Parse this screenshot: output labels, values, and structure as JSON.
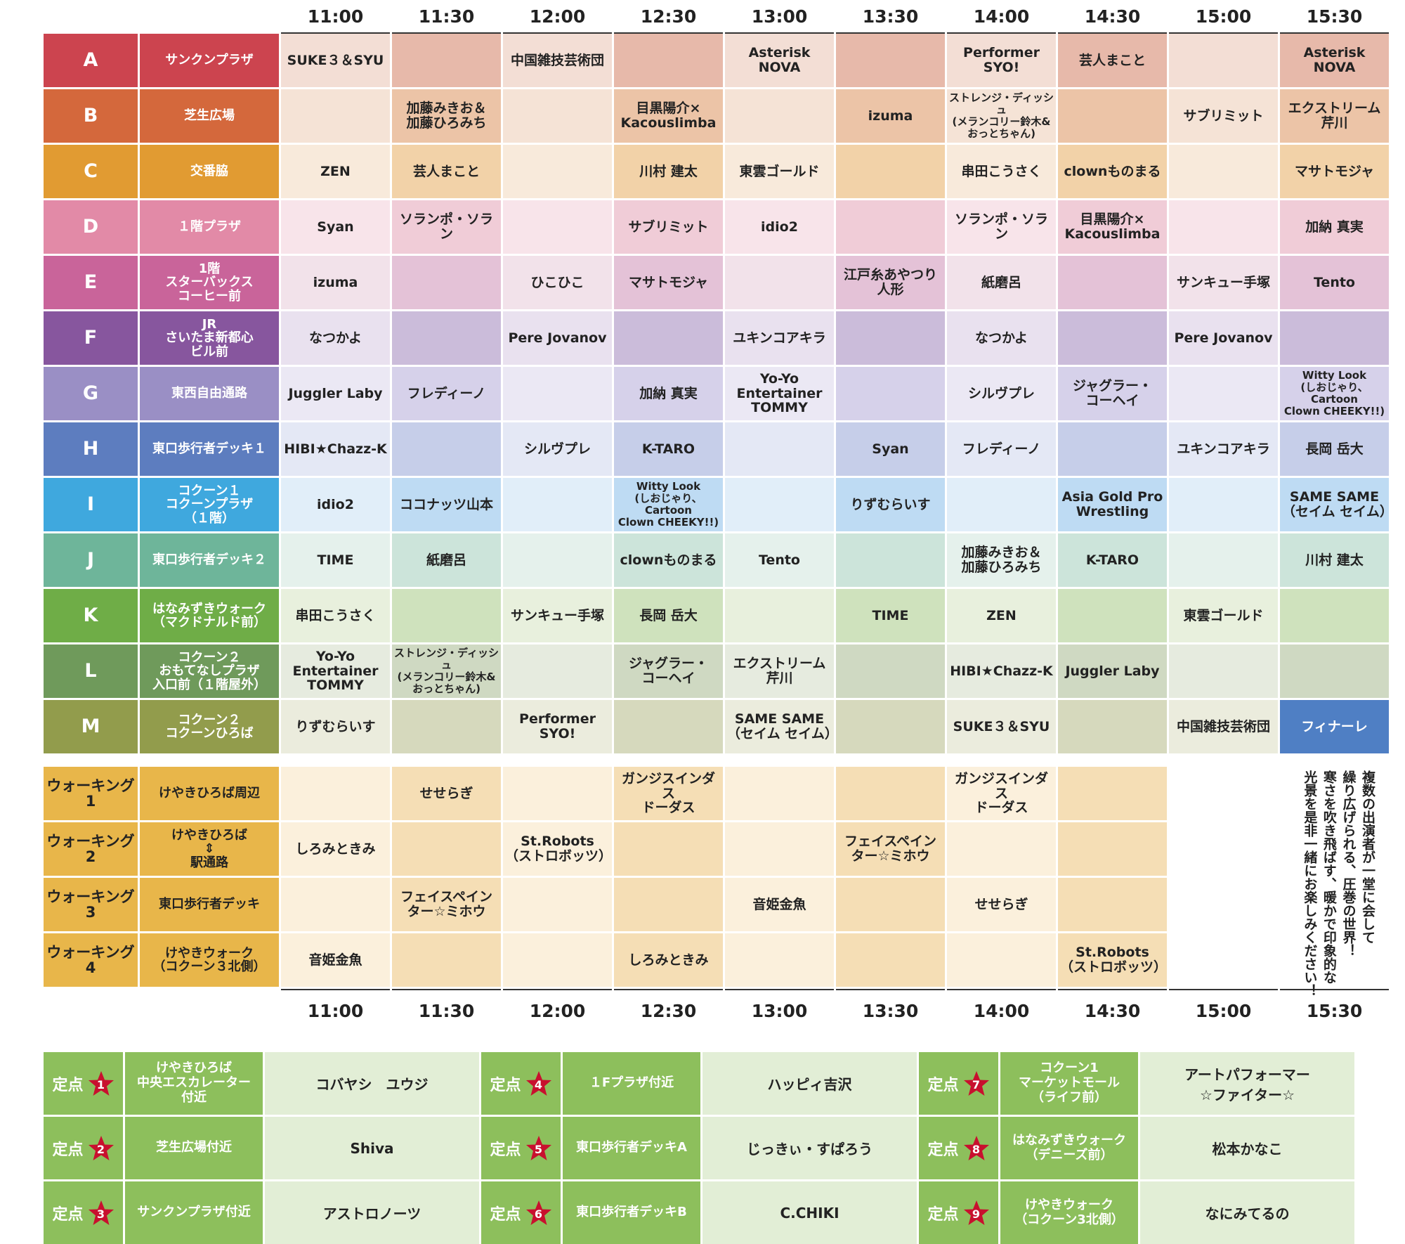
{
  "times": [
    "11:00",
    "11:30",
    "12:00",
    "12:30",
    "13:00",
    "13:30",
    "14:00",
    "14:30",
    "15:00",
    "15:30"
  ],
  "stages": [
    {
      "id": "A",
      "venue": "サンクンプラザ",
      "color": "#cc444f",
      "light": "#f3ded5",
      "dark": "#e7b9aa",
      "slots": [
        "SUKE３＆SYU",
        "",
        "中国雑技芸術団",
        "",
        "Asterisk\nNOVA",
        "",
        "Performer\nSYO!",
        "芸人まこと",
        "",
        "Asterisk\nNOVA"
      ]
    },
    {
      "id": "B",
      "venue": "芝生広場",
      "color": "#d4683c",
      "light": "#f5e3d6",
      "dark": "#ecc4a7",
      "slots": [
        "",
        "加藤みきお＆\n加藤ひろみち",
        "",
        "目黒陽介×\nKacouslimba",
        "",
        "izuma",
        "ストレンジ・ディッシュ\n(メランコリー鈴木&\nおっとちゃん)",
        "",
        "サブリミット",
        "エクストリーム\n芹川"
      ]
    },
    {
      "id": "C",
      "venue": "交番脇",
      "color": "#e19b32",
      "light": "#f8eadb",
      "dark": "#f2d2a8",
      "slots": [
        "ZEN",
        "芸人まこと",
        "",
        "川村 建太",
        "東雲ゴールド",
        "",
        "串田こうさく",
        "clownものまる",
        "",
        "マサトモジャ"
      ]
    },
    {
      "id": "D",
      "venue": "１階プラザ",
      "color": "#e28aa7",
      "light": "#f8e4ea",
      "dark": "#f0ccd7",
      "slots": [
        "Syan",
        "ソランポ・ソラン",
        "",
        "サブリミット",
        "idio2",
        "",
        "ソランポ・ソラン",
        "目黒陽介×\nKacouslimba",
        "",
        "加納 真実"
      ]
    },
    {
      "id": "E",
      "venue": "1階\nスターバックス\nコーヒー前",
      "color": "#c9649a",
      "light": "#f2e2ea",
      "dark": "#e4c2d7",
      "slots": [
        "izuma",
        "",
        "ひこひこ",
        "マサトモジャ",
        "",
        "江戸糸あやつり\n人形",
        "紙磨呂",
        "",
        "サンキュー手塚",
        "Tento"
      ]
    },
    {
      "id": "F",
      "venue": "JR\nさいたま新都心\nビル前",
      "color": "#87569e",
      "light": "#e9e1ef",
      "dark": "#cbbcda",
      "slots": [
        "なつかよ",
        "",
        "Pere Jovanov",
        "",
        "ユキンコアキラ",
        "",
        "なつかよ",
        "",
        "Pere Jovanov",
        ""
      ]
    },
    {
      "id": "G",
      "venue": "東西自由通路",
      "color": "#9a8fc5",
      "light": "#ebe8f4",
      "dark": "#d6d1ea",
      "slots": [
        "Juggler Laby",
        "フレディーノ",
        "",
        "加納 真実",
        "Yo-Yo\nEntertainer\nTOMMY",
        "",
        "シルヴプレ",
        "ジャグラー・\nコーヘイ",
        "",
        "Witty Look\n(しおじゃり、Cartoon\nClown CHEEKY!!)"
      ]
    },
    {
      "id": "H",
      "venue": "東口歩行者デッキ１",
      "color": "#5d7dbf",
      "light": "#e4e8f5",
      "dark": "#c6cee9",
      "slots": [
        "HIBI★Chazz-K",
        "",
        "シルヴプレ",
        "K-TARO",
        "",
        "Syan",
        "フレディーノ",
        "",
        "ユキンコアキラ",
        "長岡 岳大"
      ]
    },
    {
      "id": "I",
      "venue": "コクーン１\nコクーンプラザ\n（１階）",
      "color": "#3fa8de",
      "light": "#e1eef9",
      "dark": "#bedbf3",
      "slots": [
        "idio2",
        "ココナッツ山本",
        "",
        "Witty Look\n(しおじゃり、Cartoon\nClown CHEEKY!!)",
        "",
        "りずむらいす",
        "",
        "Asia Gold Pro\nWrestling",
        "",
        "SAME SAME\n（セイム セイム）"
      ]
    },
    {
      "id": "J",
      "venue": "東口歩行者デッキ２",
      "color": "#6eb59a",
      "light": "#e5f1ec",
      "dark": "#cce4da",
      "slots": [
        "TIME",
        "紙磨呂",
        "",
        "clownものまる",
        "Tento",
        "",
        "加藤みきお＆\n加藤ひろみち",
        "K-TARO",
        "",
        "川村 建太"
      ]
    },
    {
      "id": "K",
      "venue": "はなみずきウォーク\n（マクドナルド前）",
      "color": "#6fad47",
      "light": "#e8f0dd",
      "dark": "#cfe2bd",
      "slots": [
        "串田こうさく",
        "",
        "サンキュー手塚",
        "長岡 岳大",
        "",
        "TIME",
        "ZEN",
        "",
        "東雲ゴールド",
        ""
      ]
    },
    {
      "id": "L",
      "venue": "コクーン２\nおもてなしプラザ\n入口前（１階屋外）",
      "color": "#6f9a5b",
      "light": "#e6ebdf",
      "dark": "#cfd9c2",
      "slots": [
        "Yo-Yo\nEntertainer\nTOMMY",
        "ストレンジ・ディッシュ\n(メランコリー鈴木&\nおっとちゃん)",
        "",
        "ジャグラー・\nコーヘイ",
        "エクストリーム\n芹川",
        "",
        "HIBI★Chazz-K",
        "Juggler Laby",
        "",
        ""
      ]
    },
    {
      "id": "M",
      "venue": "コクーン２\nコクーンひろば",
      "color": "#929c4c",
      "light": "#ebecdd",
      "dark": "#d6d9bd",
      "slots": [
        "りずむらいす",
        "",
        "Performer\nSYO!",
        "",
        "SAME SAME\n（セイム セイム）",
        "",
        "SUKE３＆SYU",
        "",
        "中国雑技芸術団",
        "フィナーレ"
      ]
    }
  ],
  "walking": {
    "color": "#e8b64a",
    "light": "#fbf0dc",
    "dark": "#f5deb5",
    "rows": [
      {
        "label": "ウォーキング\n1",
        "venue": "けやきひろば周辺",
        "slots": [
          "",
          "せせらぎ",
          "",
          "ガンジスインダス\nドーダス",
          "",
          "",
          "ガンジスインダス\nドーダス",
          ""
        ]
      },
      {
        "label": "ウォーキング\n2",
        "venue": "けやきひろば\n⇕\n駅通路",
        "slots": [
          "しろみときみ",
          "",
          "St.Robots\n（ストロボッツ）",
          "",
          "",
          "フェイスペイン\nター☆ミホウ",
          "",
          ""
        ]
      },
      {
        "label": "ウォーキング\n3",
        "venue": "東口歩行者デッキ",
        "slots": [
          "",
          "フェイスペイン\nター☆ミホウ",
          "",
          "",
          "音姫金魚",
          "",
          "せせらぎ",
          ""
        ]
      },
      {
        "label": "ウォーキング\n4",
        "venue": "けやきウォーク\n（コクーン３北側）",
        "slots": [
          "音姫金魚",
          "",
          "",
          "しろみときみ",
          "",
          "",
          "",
          "St.Robots\n（ストロボッツ）"
        ]
      }
    ]
  },
  "note": "複数の出演者が一堂に会して\n繰り広げられる、圧巻の世界！\n寒さを吹き飛ばす、暖かで印象的な\n光景を是非一緒にお楽しみください！",
  "finale_color": "#4f7fc4",
  "fixed": {
    "label": "定点",
    "star_color": "#c8102e",
    "points": [
      {
        "num": "1",
        "venue": "けやきひろば\n中央エスカレーター\n付近",
        "performer": "コバヤシ　ユウジ"
      },
      {
        "num": "4",
        "venue": "１Fプラザ付近",
        "performer": "ハッピィ吉沢"
      },
      {
        "num": "7",
        "venue": "コクーン1\nマーケットモール\n（ライフ前）",
        "performer": "アートパフォーマー\n☆ファイター☆"
      },
      {
        "num": "2",
        "venue": "芝生広場付近",
        "performer": "Shiva"
      },
      {
        "num": "5",
        "venue": "東口歩行者デッキA",
        "performer": "じっきぃ・すぱろう"
      },
      {
        "num": "8",
        "venue": "はなみずきウォーク\n（デニーズ前）",
        "performer": "松本かなこ"
      },
      {
        "num": "3",
        "venue": "サンクンプラザ付近",
        "performer": "アストロノーツ"
      },
      {
        "num": "6",
        "venue": "東口歩行者デッキB",
        "performer": "C.CHIKI"
      },
      {
        "num": "9",
        "venue": "けやきウォーク\n（コクーン3北側）",
        "performer": "なにみてるの"
      }
    ]
  }
}
